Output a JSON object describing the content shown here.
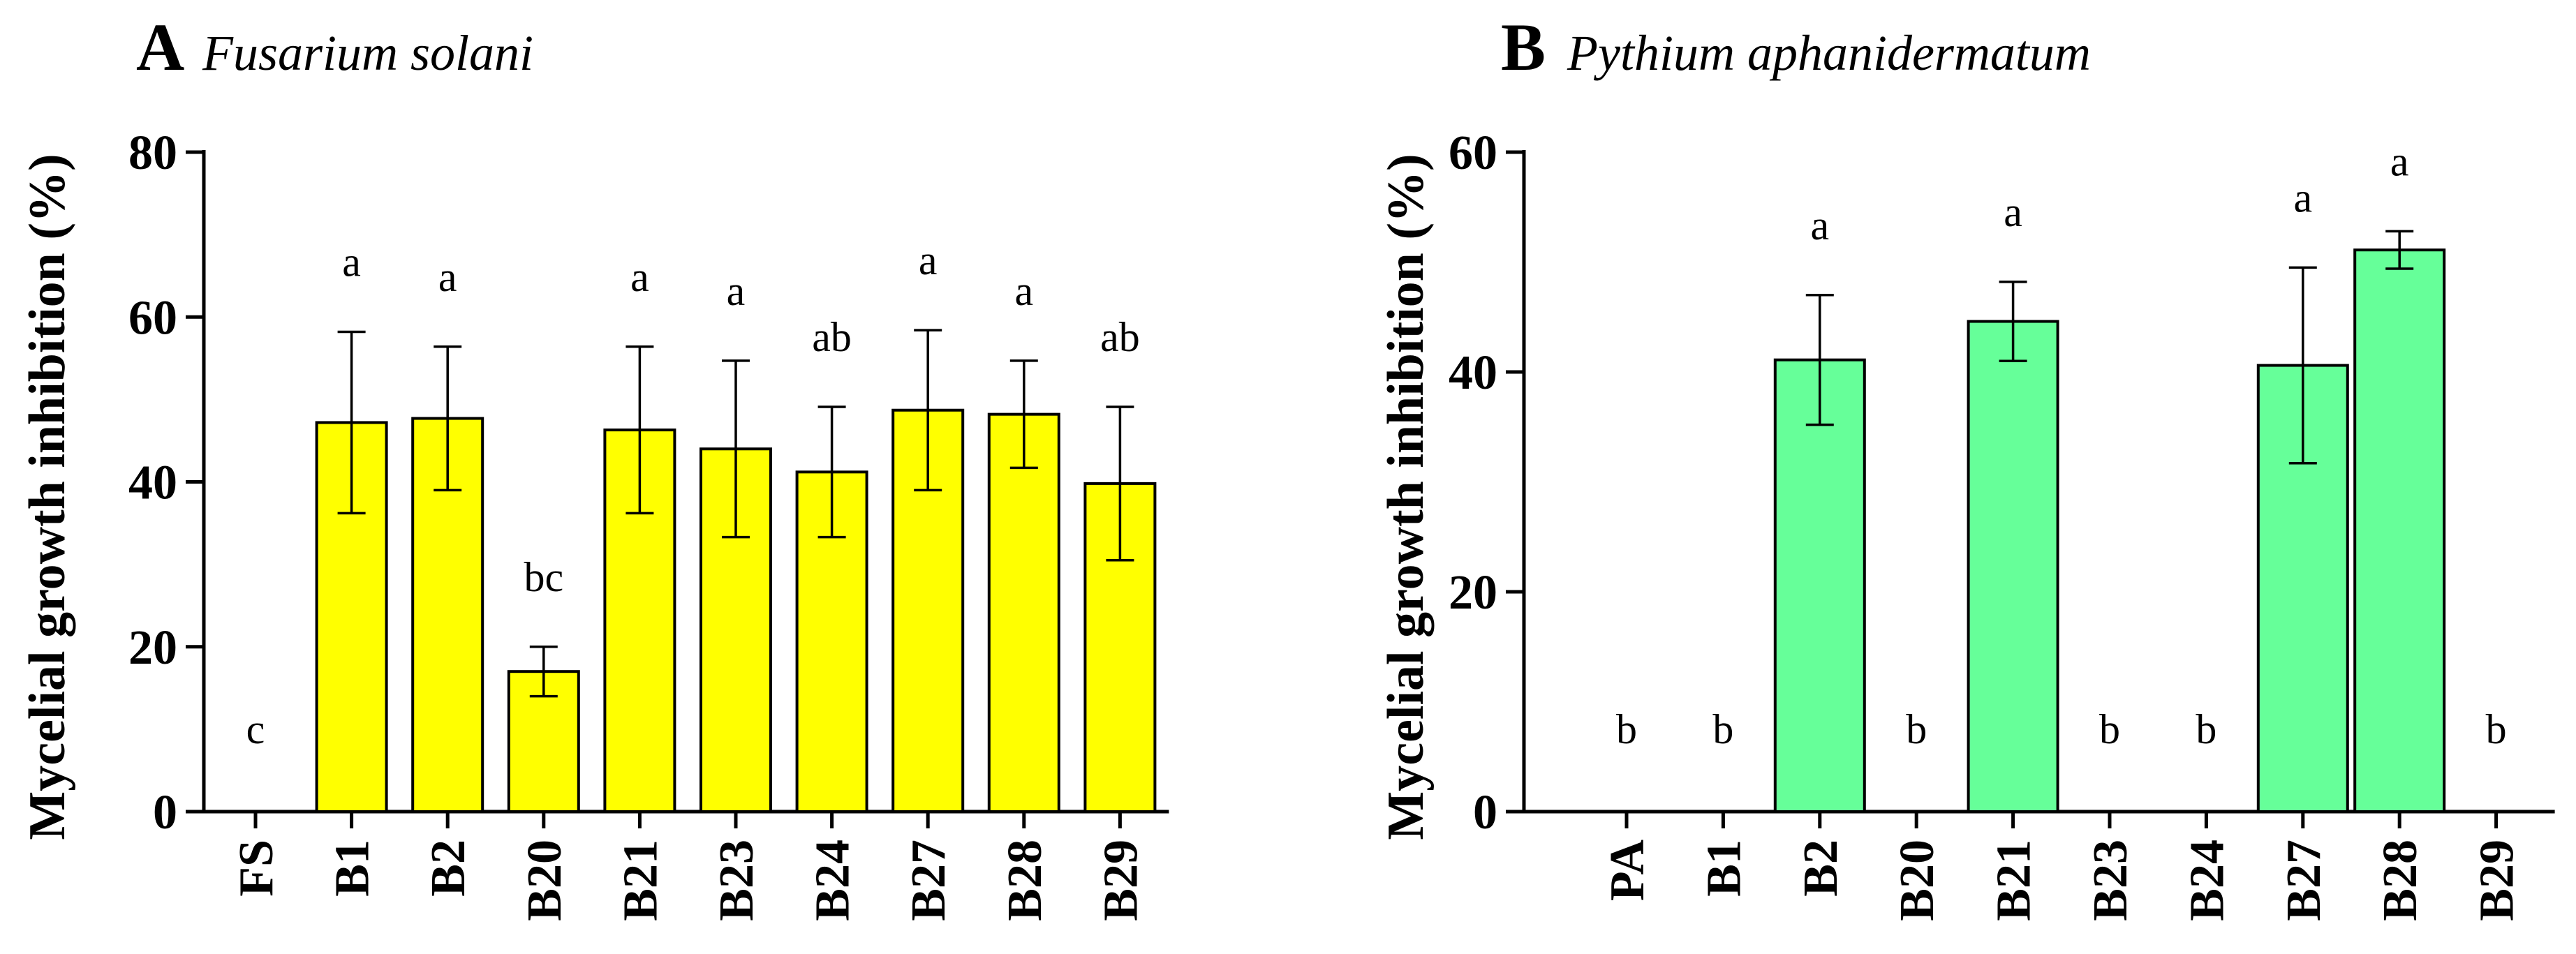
{
  "colors": {
    "panelA_bar": "#ffff00",
    "panelB_bar": "#66ff99",
    "ink": "#000000"
  },
  "chart_data": [
    {
      "type": "bar",
      "panel": "A",
      "title": "Fusarium solani",
      "xlabel": "",
      "ylabel": "Mycelial growth inhibition (%)",
      "ylim": [
        0,
        80
      ],
      "yticks": [
        0,
        20,
        40,
        60,
        80
      ],
      "categories": [
        "FS",
        "B1",
        "B2",
        "B20",
        "B21",
        "B23",
        "B24",
        "B27",
        "B28",
        "B29"
      ],
      "values": [
        0,
        47.2,
        47.7,
        17.0,
        46.3,
        44.0,
        41.2,
        48.7,
        48.2,
        39.8
      ],
      "errors": [
        0,
        11.0,
        8.7,
        3.0,
        10.1,
        10.7,
        7.9,
        9.7,
        6.5,
        9.3
      ],
      "letters": [
        "c",
        "a",
        "a",
        "bc",
        "a",
        "a",
        "ab",
        "a",
        "a",
        "ab"
      ]
    },
    {
      "type": "bar",
      "panel": "B",
      "title": "Pythium aphanidermatum",
      "xlabel": "",
      "ylabel": "Mycelial growth inhibition (%)",
      "ylim": [
        0,
        60
      ],
      "yticks": [
        0,
        20,
        40,
        60
      ],
      "categories": [
        "PA",
        "B1",
        "B2",
        "B20",
        "B21",
        "B23",
        "B24",
        "B27",
        "B28",
        "B29"
      ],
      "values": [
        0,
        0,
        41.1,
        0,
        44.6,
        0,
        0,
        40.6,
        51.1,
        0
      ],
      "errors": [
        0,
        0,
        5.9,
        0,
        3.6,
        0,
        0,
        8.9,
        1.7,
        0
      ],
      "letters": [
        "b",
        "b",
        "a",
        "b",
        "a",
        "b",
        "b",
        "a",
        "a",
        "b"
      ]
    }
  ]
}
